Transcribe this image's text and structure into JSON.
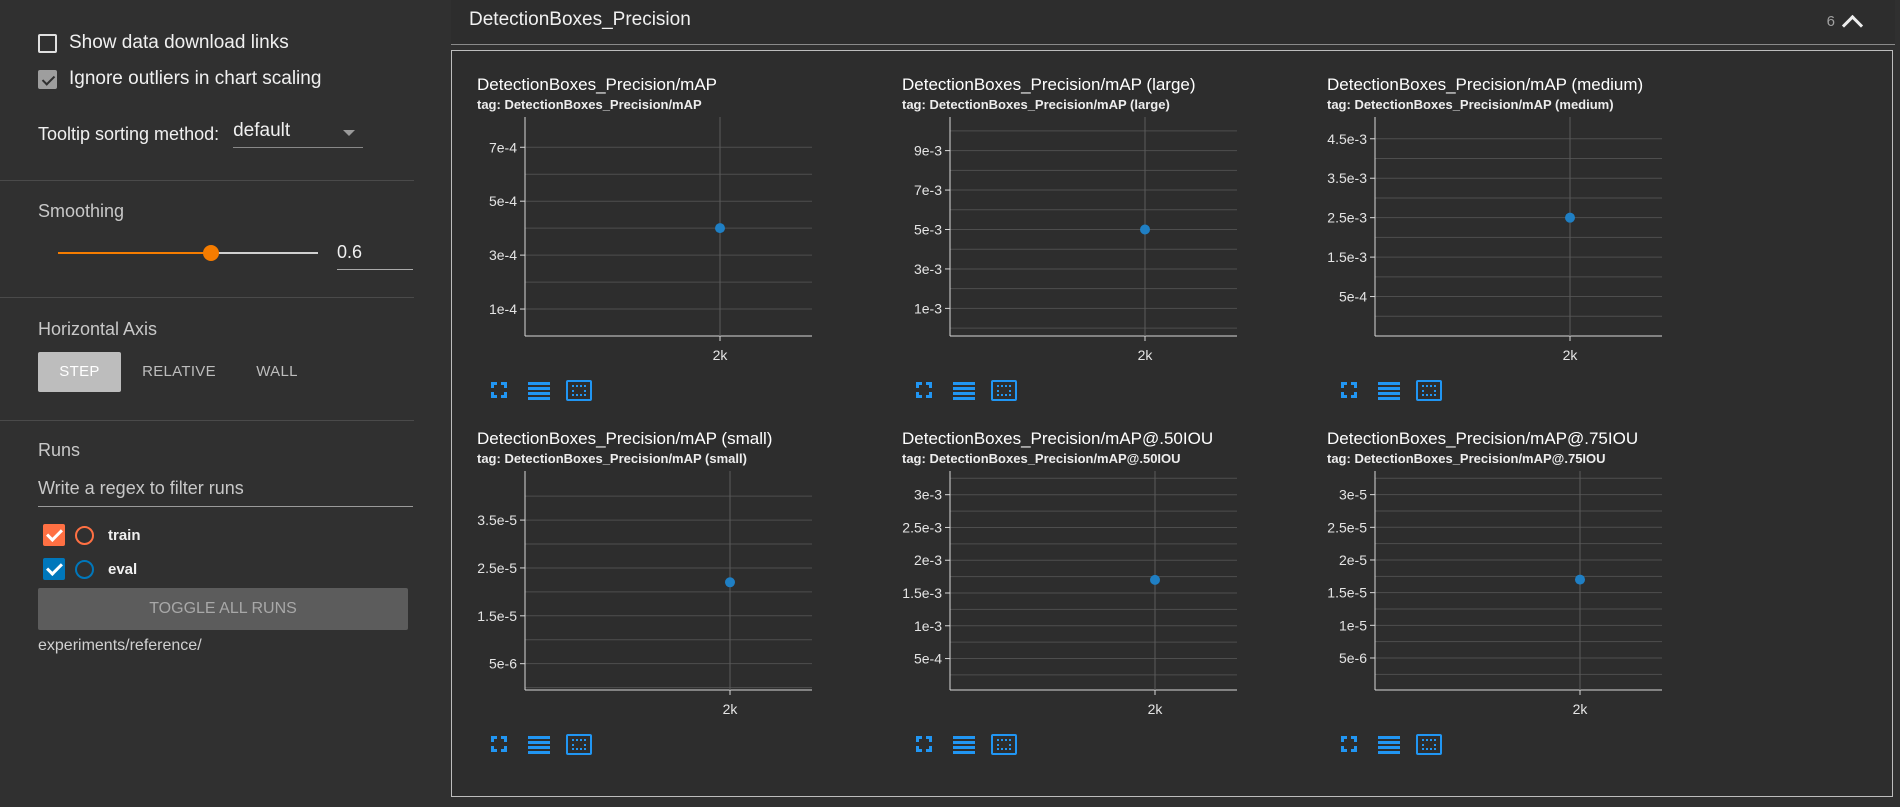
{
  "sidebar": {
    "show_download_links": {
      "label": "Show data download links",
      "checked": false
    },
    "ignore_outliers": {
      "label": "Ignore outliers in chart scaling",
      "checked": true
    },
    "tooltip": {
      "label": "Tooltip sorting method:",
      "value": "default"
    },
    "smoothing": {
      "title": "Smoothing",
      "value": "0.6",
      "fraction": 0.6
    },
    "horizontal_axis": {
      "title": "Horizontal Axis",
      "options": [
        "STEP",
        "RELATIVE",
        "WALL"
      ],
      "selected": "STEP"
    },
    "runs": {
      "title": "Runs",
      "filter_placeholder": "Write a regex to filter runs",
      "items": [
        {
          "name": "train",
          "color": "#ff7043",
          "checked": true
        },
        {
          "name": "eval",
          "color": "#0077bb",
          "checked": true
        }
      ],
      "toggle_label": "TOGGLE ALL RUNS",
      "path": "experiments/reference/"
    }
  },
  "group": {
    "title": "DetectionBoxes_Precision",
    "count": "6"
  },
  "colors": {
    "accent": "#f57c00",
    "point": "#1f7fc4",
    "toolbar_icon": "#2196f3",
    "background": "#303030"
  },
  "charts": [
    {
      "title": "DetectionBoxes_Precision/mAP",
      "tag": "tag: DetectionBoxes_Precision/mAP"
    },
    {
      "title": "DetectionBoxes_Precision/mAP (large)",
      "tag": "tag: DetectionBoxes_Precision/mAP (large)"
    },
    {
      "title": "DetectionBoxes_Precision/mAP (medium)",
      "tag": "tag: DetectionBoxes_Precision/mAP (medium)"
    },
    {
      "title": "DetectionBoxes_Precision/mAP (small)",
      "tag": "tag: DetectionBoxes_Precision/mAP (small)"
    },
    {
      "title": "DetectionBoxes_Precision/mAP@.50IOU",
      "tag": "tag: DetectionBoxes_Precision/mAP@.50IOU"
    },
    {
      "title": "DetectionBoxes_Precision/mAP@.75IOU",
      "tag": "tag: DetectionBoxes_Precision/mAP@.75IOU"
    }
  ],
  "chart_data": [
    {
      "type": "scatter",
      "title": "DetectionBoxes_Precision/mAP",
      "x": [
        2000
      ],
      "y": [
        0.0004
      ],
      "xticks": [
        "2k"
      ],
      "yticks": [
        "1e-4",
        "3e-4",
        "5e-4",
        "7e-4"
      ],
      "ytick_values": [
        0.0001,
        0.0003,
        0.0005,
        0.0007
      ],
      "ylim": [
        0.0,
        0.00079
      ]
    },
    {
      "type": "scatter",
      "title": "DetectionBoxes_Precision/mAP (large)",
      "x": [
        2000
      ],
      "y": [
        0.005
      ],
      "xticks": [
        "2k"
      ],
      "yticks": [
        "1e-3",
        "3e-3",
        "5e-3",
        "7e-3",
        "9e-3"
      ],
      "ytick_values": [
        0.001,
        0.003,
        0.005,
        0.007,
        0.009
      ],
      "ylim": [
        -0.0004,
        0.0104
      ]
    },
    {
      "type": "scatter",
      "title": "DetectionBoxes_Precision/mAP (medium)",
      "x": [
        2000
      ],
      "y": [
        0.0025
      ],
      "xticks": [
        "2k"
      ],
      "yticks": [
        "5e-4",
        "1.5e-3",
        "2.5e-3",
        "3.5e-3",
        "4.5e-3"
      ],
      "ytick_values": [
        0.0005,
        0.0015,
        0.0025,
        0.0035,
        0.0045
      ],
      "ylim": [
        -0.0005,
        0.0049
      ]
    },
    {
      "type": "scatter",
      "title": "DetectionBoxes_Precision/mAP (small)",
      "x": [
        2000
      ],
      "y": [
        2.2e-05
      ],
      "xticks": [
        "2k"
      ],
      "yticks": [
        "5e-6",
        "1.5e-5",
        "2.5e-5",
        "3.5e-5"
      ],
      "ytick_values": [
        5e-06,
        1.5e-05,
        2.5e-05,
        3.5e-05
      ],
      "ylim": [
        -5e-07,
        4.4e-05
      ]
    },
    {
      "type": "scatter",
      "title": "DetectionBoxes_Precision/mAP@.50IOU",
      "x": [
        2000
      ],
      "y": [
        0.0017
      ],
      "xticks": [
        "2k"
      ],
      "yticks": [
        "5e-4",
        "1e-3",
        "1.5e-3",
        "2e-3",
        "2.5e-3",
        "3e-3"
      ],
      "ytick_values": [
        0.0005,
        0.001,
        0.0015,
        0.002,
        0.0025,
        0.003
      ],
      "ylim": [
        2e-05,
        0.00327
      ]
    },
    {
      "type": "scatter",
      "title": "DetectionBoxes_Precision/mAP@.75IOU",
      "x": [
        2000
      ],
      "y": [
        1.7e-05
      ],
      "xticks": [
        "2k"
      ],
      "yticks": [
        "5e-6",
        "1e-5",
        "1.5e-5",
        "2e-5",
        "2.5e-5",
        "3e-5"
      ],
      "ytick_values": [
        5e-06,
        1e-05,
        1.5e-05,
        2e-05,
        2.5e-05,
        3e-05
      ],
      "ylim": [
        1e-07,
        3.27e-05
      ]
    }
  ]
}
